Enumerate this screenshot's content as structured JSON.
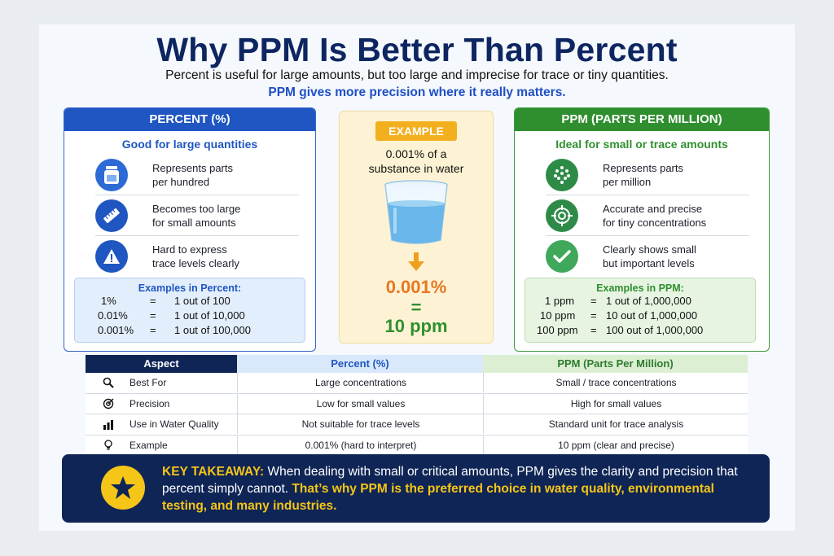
{
  "header": {
    "title": "Why PPM Is Better Than Percent",
    "subtitle": "Percent is useful for large amounts, but too large and imprecise for trace or tiny quantities.",
    "subtitle_highlight": "PPM gives more precision where it really matters."
  },
  "percent_panel": {
    "heading": "PERCENT (%)",
    "subheading": "Good for large quantities",
    "features": [
      {
        "icon": "jar-icon",
        "line1": "Represents parts",
        "line2": "per hundred"
      },
      {
        "icon": "ruler-icon",
        "line1": "Becomes too large",
        "line2": "for small amounts"
      },
      {
        "icon": "warning-icon",
        "line1": "Hard to express",
        "line2": "trace levels clearly"
      }
    ],
    "examples_title": "Examples in Percent:",
    "examples": [
      {
        "value": "1%",
        "eq": "=",
        "meaning": "1 out of 100"
      },
      {
        "value": "0.01%",
        "eq": "=",
        "meaning": "1 out of 10,000"
      },
      {
        "value": "0.001%",
        "eq": "=",
        "meaning": "1 out of 100,000"
      }
    ],
    "color": "#1f56c1"
  },
  "example_panel": {
    "badge": "EXAMPLE",
    "desc_line1": "0.001% of a",
    "desc_line2": "substance in water",
    "value_percent": "0.001%",
    "equals": "=",
    "value_ppm": "10 ppm",
    "icons": [
      "water-glass-icon",
      "arrow-down-icon"
    ]
  },
  "ppm_panel": {
    "heading": "PPM (PARTS PER MILLION)",
    "subheading": "Ideal for small or trace amounts",
    "features": [
      {
        "icon": "dots-icon",
        "line1": "Represents parts",
        "line2": "per million"
      },
      {
        "icon": "target-icon",
        "line1": "Accurate and precise",
        "line2": "for tiny concentrations"
      },
      {
        "icon": "checkmark-icon",
        "line1": "Clearly shows small",
        "line2": "but important levels"
      }
    ],
    "examples_title": "Examples in PPM:",
    "examples": [
      {
        "value": "1 ppm",
        "eq": "=",
        "meaning": "1 out of 1,000,000"
      },
      {
        "value": "10 ppm",
        "eq": "=",
        "meaning": "10 out of 1,000,000"
      },
      {
        "value": "100 ppm",
        "eq": "=",
        "meaning": "100 out of 1,000,000"
      }
    ],
    "color": "#2f8f2f"
  },
  "comparison_table": {
    "headers": [
      "Aspect",
      "Percent (%)",
      "PPM (Parts Per Million)"
    ],
    "rows": [
      {
        "icon": "search-icon",
        "aspect": "Best For",
        "percent": "Large concentrations",
        "ppm": "Small / trace concentrations"
      },
      {
        "icon": "target-icon",
        "aspect": "Precision",
        "percent": "Low for small values",
        "ppm": "High for small values"
      },
      {
        "icon": "bar-chart-icon",
        "aspect": "Use in Water Quality",
        "percent": "Not suitable for trace levels",
        "ppm": "Standard unit for trace analysis"
      },
      {
        "icon": "lightbulb-icon",
        "aspect": "Example",
        "percent": "0.001% (hard to interpret)",
        "ppm": "10 ppm (clear and precise)"
      }
    ]
  },
  "takeaway": {
    "label": "KEY TAKEAWAY:",
    "text_white": "When dealing with small or critical amounts, PPM gives the clarity and precision that percent simply cannot.",
    "text_yellow": "That’s why PPM is the preferred choice in water quality, environmental testing, and many industries.",
    "icon": "star-icon"
  }
}
